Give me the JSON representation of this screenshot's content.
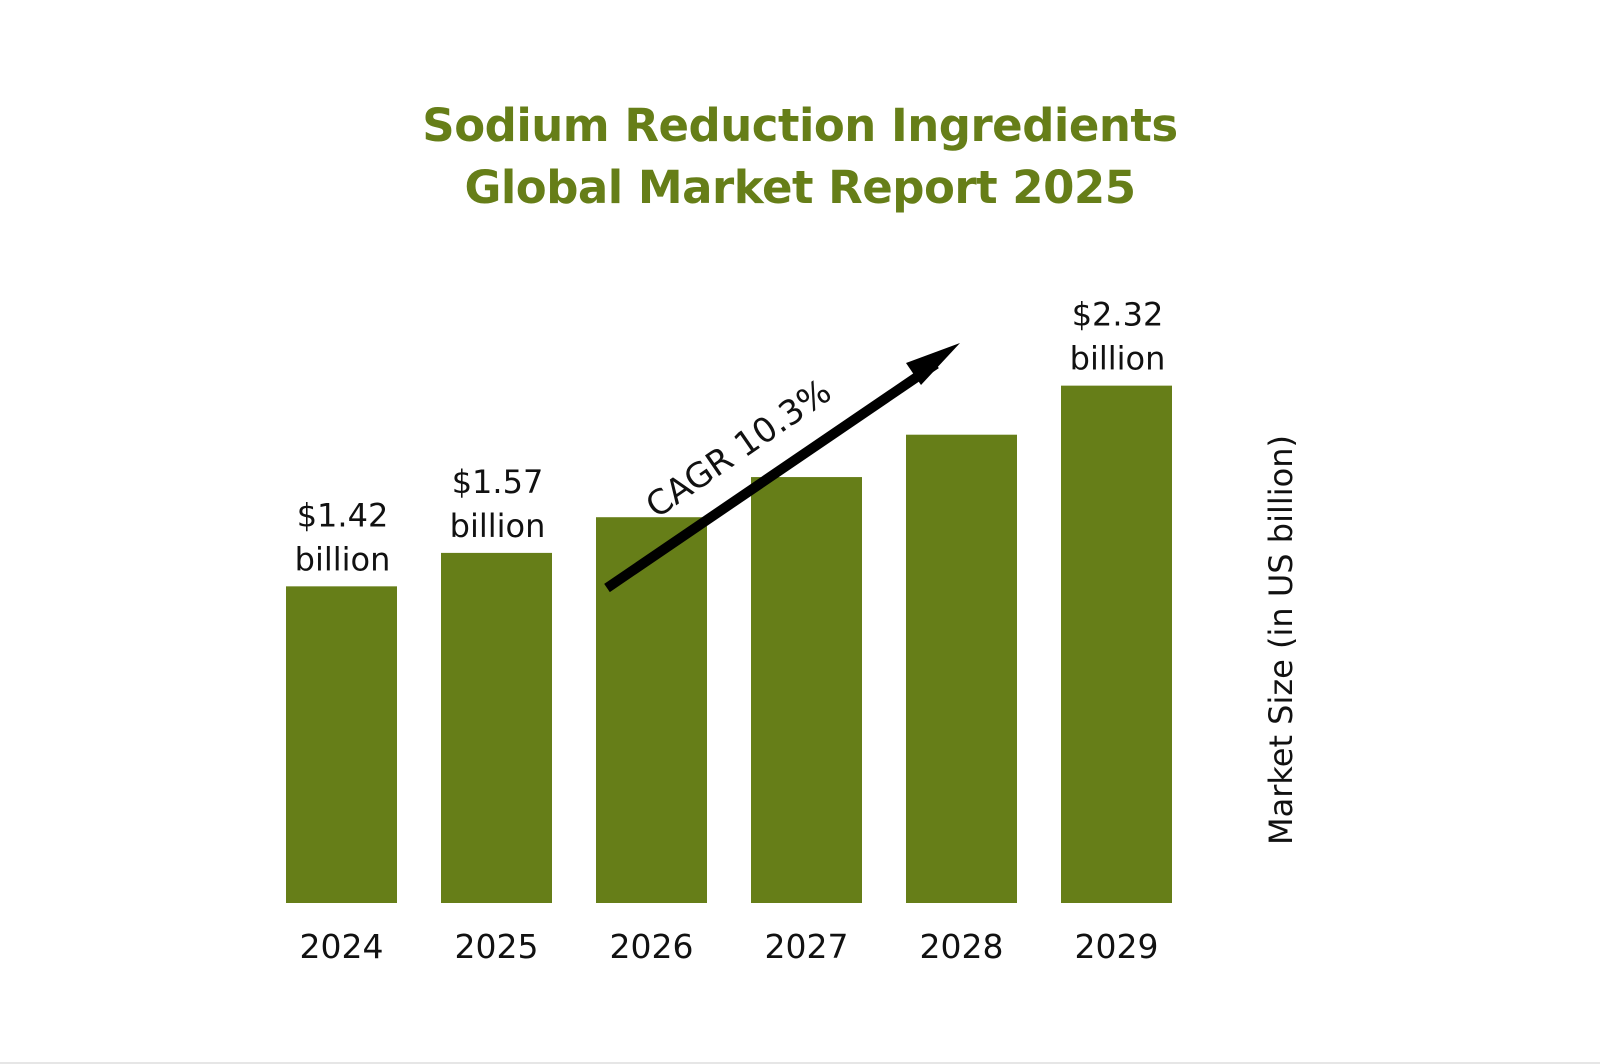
{
  "colors": {
    "bar": "#667e18",
    "title": "#667e18",
    "text": "#111111",
    "arrow": "#000000"
  },
  "title_lines": [
    "Sodium Reduction Ingredients",
    "Global Market Report 2025"
  ],
  "chart_data": {
    "type": "bar",
    "title": "Sodium Reduction Ingredients Global Market Report 2025",
    "categories": [
      "2024",
      "2025",
      "2026",
      "2027",
      "2028",
      "2029"
    ],
    "values": [
      1.42,
      1.57,
      1.73,
      1.91,
      2.1,
      2.32
    ],
    "data_labels": [
      {
        "index": 0,
        "value_text": "$1.42",
        "unit_text": "billion"
      },
      {
        "index": 1,
        "value_text": "$1.57",
        "unit_text": "billion"
      },
      {
        "index": 5,
        "value_text": "$2.32",
        "unit_text": "billion"
      }
    ],
    "ylabel": "Market Size (in US billion)",
    "xlabel": "",
    "annotation": "CAGR 10.3%",
    "grid": false
  }
}
